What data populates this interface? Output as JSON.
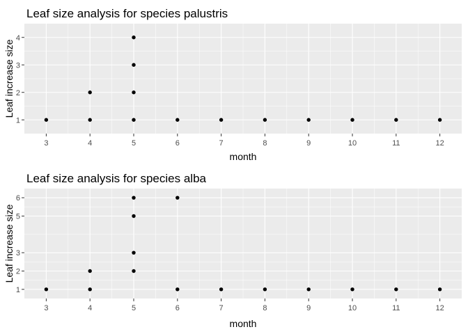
{
  "chart_data": [
    {
      "type": "scatter",
      "title": "Leaf size analysis for species palustris",
      "xlabel": "month",
      "ylabel": "Leaf increase size",
      "x_ticks": [
        3,
        4,
        5,
        6,
        7,
        8,
        9,
        10,
        11,
        12
      ],
      "y_ticks": [
        1,
        2,
        3,
        4
      ],
      "xlim": [
        2.5,
        12.5
      ],
      "ylim": [
        0.5,
        4.5
      ],
      "grid": true,
      "point_color": "#000000",
      "background_color": "#ebebeb",
      "points": [
        {
          "x": 3,
          "y": 1
        },
        {
          "x": 4,
          "y": 1
        },
        {
          "x": 4,
          "y": 2
        },
        {
          "x": 5,
          "y": 1
        },
        {
          "x": 5,
          "y": 2
        },
        {
          "x": 5,
          "y": 3
        },
        {
          "x": 5,
          "y": 4
        },
        {
          "x": 6,
          "y": 1
        },
        {
          "x": 7,
          "y": 1
        },
        {
          "x": 8,
          "y": 1
        },
        {
          "x": 9,
          "y": 1
        },
        {
          "x": 10,
          "y": 1
        },
        {
          "x": 11,
          "y": 1
        },
        {
          "x": 12,
          "y": 1
        }
      ]
    },
    {
      "type": "scatter",
      "title": "Leaf size analysis for species alba",
      "xlabel": "month",
      "ylabel": "Leaf increase size",
      "x_ticks": [
        3,
        4,
        5,
        6,
        7,
        8,
        9,
        10,
        11,
        12
      ],
      "y_ticks": [
        1,
        2,
        3,
        5,
        6
      ],
      "xlim": [
        2.5,
        12.5
      ],
      "ylim": [
        0.5,
        6.5
      ],
      "grid": true,
      "point_color": "#000000",
      "background_color": "#ebebeb",
      "points": [
        {
          "x": 3,
          "y": 1
        },
        {
          "x": 4,
          "y": 1
        },
        {
          "x": 4,
          "y": 2
        },
        {
          "x": 5,
          "y": 2
        },
        {
          "x": 5,
          "y": 3
        },
        {
          "x": 5,
          "y": 5
        },
        {
          "x": 5,
          "y": 6
        },
        {
          "x": 6,
          "y": 1
        },
        {
          "x": 6,
          "y": 6
        },
        {
          "x": 7,
          "y": 1
        },
        {
          "x": 8,
          "y": 1
        },
        {
          "x": 9,
          "y": 1
        },
        {
          "x": 10,
          "y": 1
        },
        {
          "x": 11,
          "y": 1
        },
        {
          "x": 12,
          "y": 1
        }
      ]
    }
  ]
}
